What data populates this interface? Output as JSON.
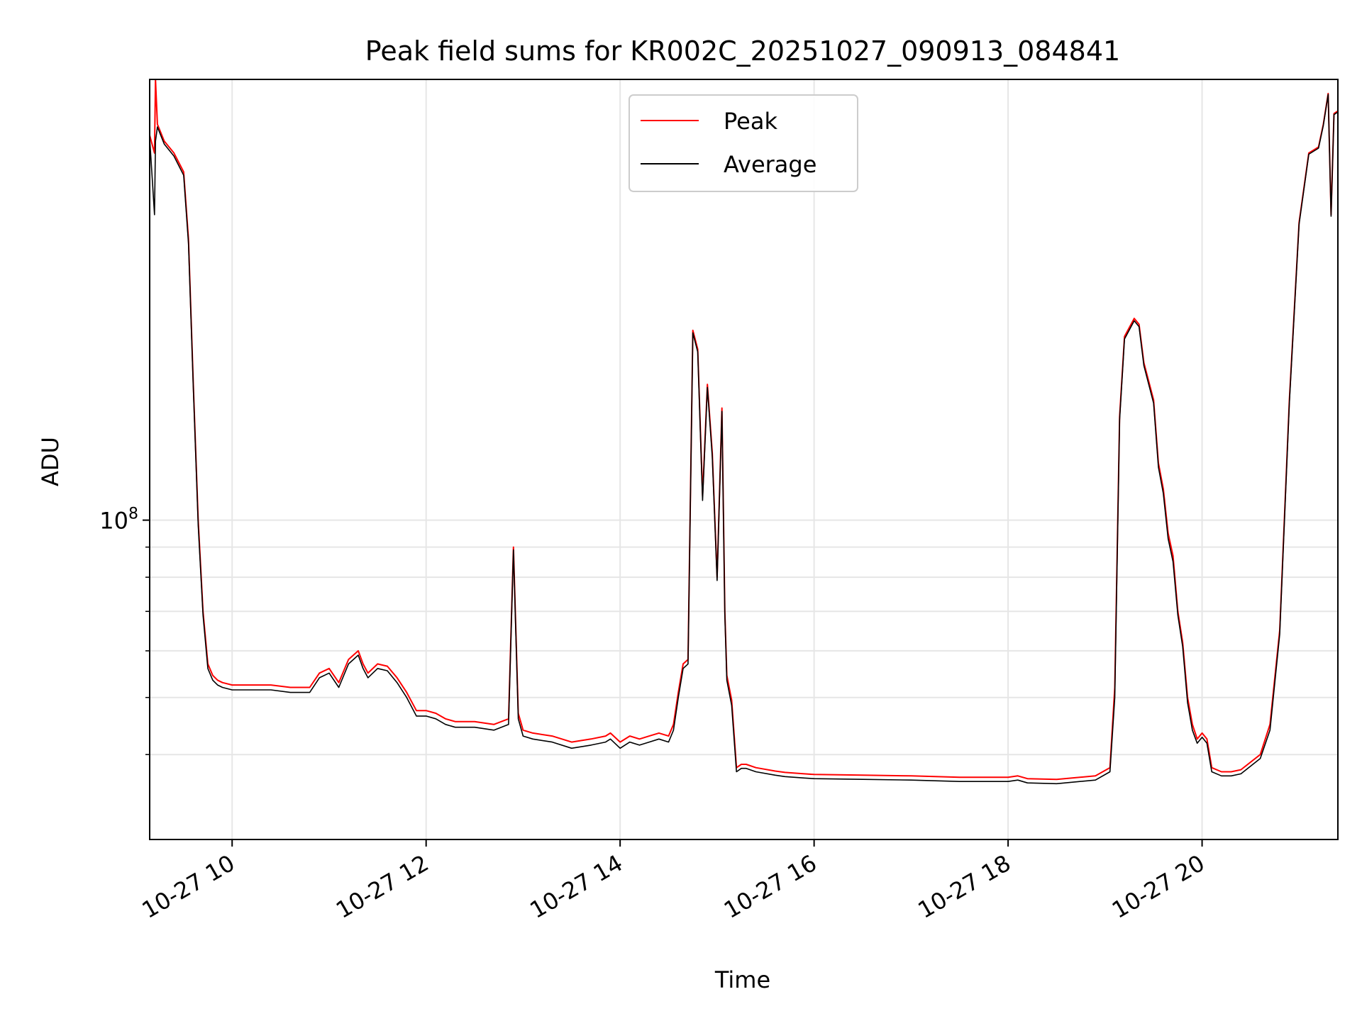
{
  "chart_data": {
    "type": "line",
    "title": "Peak field sums for KR002C_20251027_090913_084841",
    "xlabel": "Time",
    "ylabel": "ADU",
    "x_unit": "hours (local time)",
    "xlim": [
      9.15,
      21.4
    ],
    "ylim": [
      28700000,
      560000000
    ],
    "yscale": "log",
    "grid": true,
    "legend_position": "top-center",
    "x_ticks": [
      {
        "value": 10,
        "label": "10-27 10"
      },
      {
        "value": 12,
        "label": "10-27 12"
      },
      {
        "value": 14,
        "label": "10-27 14"
      },
      {
        "value": 16,
        "label": "10-27 16"
      },
      {
        "value": 18,
        "label": "10-27 18"
      },
      {
        "value": 20,
        "label": "10-27 20"
      }
    ],
    "y_major_ticks": [
      {
        "value": 100000000,
        "base": "10",
        "exp": "8"
      }
    ],
    "y_minor_ticks": [
      40000000,
      50000000,
      60000000,
      70000000,
      80000000,
      90000000
    ],
    "series": [
      {
        "name": "Peak",
        "color": "#ff0000",
        "x": [
          9.15,
          9.2,
          9.21,
          9.23,
          9.3,
          9.4,
          9.5,
          9.55,
          9.6,
          9.65,
          9.7,
          9.75,
          9.8,
          9.85,
          9.9,
          10.0,
          10.2,
          10.4,
          10.6,
          10.8,
          10.9,
          11.0,
          11.1,
          11.2,
          11.3,
          11.35,
          11.4,
          11.5,
          11.6,
          11.7,
          11.8,
          11.9,
          12.0,
          12.1,
          12.2,
          12.3,
          12.5,
          12.7,
          12.85,
          12.9,
          12.95,
          13.0,
          13.1,
          13.3,
          13.5,
          13.7,
          13.85,
          13.9,
          14.0,
          14.1,
          14.2,
          14.3,
          14.4,
          14.5,
          14.55,
          14.6,
          14.65,
          14.7,
          14.75,
          14.8,
          14.85,
          14.9,
          14.95,
          15.0,
          15.05,
          15.08,
          15.1,
          15.15,
          15.2,
          15.25,
          15.3,
          15.4,
          15.6,
          15.7,
          15.8,
          15.9,
          16.0,
          16.5,
          17.0,
          17.5,
          18.0,
          18.1,
          18.2,
          18.5,
          18.9,
          19.05,
          19.1,
          19.15,
          19.2,
          19.3,
          19.35,
          19.4,
          19.5,
          19.55,
          19.6,
          19.65,
          19.7,
          19.75,
          19.8,
          19.85,
          19.9,
          19.95,
          20.0,
          20.05,
          20.1,
          20.2,
          20.3,
          20.4,
          20.6,
          20.7,
          20.8,
          20.9,
          21.0,
          21.1,
          21.2,
          21.25,
          21.3,
          21.33,
          21.36,
          21.4
        ],
        "values": [
          450000000,
          420000000,
          560000000,
          470000000,
          440000000,
          420000000,
          390000000,
          300000000,
          170000000,
          100000000,
          70000000,
          57000000,
          54500000,
          53500000,
          53000000,
          52500000,
          52500000,
          52500000,
          52000000,
          52000000,
          55000000,
          56000000,
          53000000,
          58000000,
          60000000,
          57000000,
          55000000,
          57000000,
          56500000,
          54000000,
          51000000,
          47500000,
          47500000,
          47000000,
          46000000,
          45500000,
          45500000,
          45000000,
          46000000,
          90000000,
          47000000,
          44000000,
          43500000,
          43000000,
          42000000,
          42500000,
          43000000,
          43500000,
          42000000,
          43000000,
          42500000,
          43000000,
          43500000,
          43000000,
          45000000,
          51000000,
          57000000,
          58000000,
          210000000,
          195000000,
          110000000,
          170000000,
          130000000,
          80000000,
          155000000,
          70000000,
          54500000,
          49500000,
          38000000,
          38500000,
          38500000,
          38000000,
          37500000,
          37300000,
          37200000,
          37100000,
          37000000,
          36900000,
          36800000,
          36600000,
          36600000,
          36800000,
          36400000,
          36300000,
          36800000,
          38000000,
          52000000,
          150000000,
          205000000,
          220000000,
          215000000,
          185000000,
          160000000,
          125000000,
          113000000,
          95000000,
          87000000,
          70000000,
          62000000,
          50000000,
          45000000,
          42500000,
          43500000,
          42500000,
          38000000,
          37400000,
          37400000,
          37700000,
          40000000,
          45000000,
          65000000,
          160000000,
          320000000,
          420000000,
          430000000,
          470000000,
          530000000,
          330000000,
          490000000,
          495000000
        ]
      },
      {
        "name": "Average",
        "color": "#000000",
        "x": [
          9.15,
          9.2,
          9.21,
          9.23,
          9.3,
          9.4,
          9.5,
          9.55,
          9.6,
          9.65,
          9.7,
          9.75,
          9.8,
          9.85,
          9.9,
          10.0,
          10.2,
          10.4,
          10.6,
          10.8,
          10.9,
          11.0,
          11.1,
          11.2,
          11.3,
          11.35,
          11.4,
          11.5,
          11.6,
          11.7,
          11.8,
          11.9,
          12.0,
          12.1,
          12.2,
          12.3,
          12.5,
          12.7,
          12.85,
          12.9,
          12.95,
          13.0,
          13.1,
          13.3,
          13.5,
          13.7,
          13.85,
          13.9,
          14.0,
          14.1,
          14.2,
          14.3,
          14.4,
          14.5,
          14.55,
          14.6,
          14.65,
          14.7,
          14.75,
          14.8,
          14.85,
          14.9,
          14.95,
          15.0,
          15.05,
          15.08,
          15.1,
          15.15,
          15.2,
          15.25,
          15.3,
          15.4,
          15.6,
          15.7,
          15.8,
          15.9,
          16.0,
          16.5,
          17.0,
          17.5,
          18.0,
          18.1,
          18.2,
          18.5,
          18.9,
          19.05,
          19.1,
          19.15,
          19.2,
          19.3,
          19.35,
          19.4,
          19.5,
          19.55,
          19.6,
          19.65,
          19.7,
          19.75,
          19.8,
          19.85,
          19.9,
          19.95,
          20.0,
          20.05,
          20.1,
          20.2,
          20.3,
          20.4,
          20.6,
          20.7,
          20.8,
          20.9,
          21.0,
          21.1,
          21.2,
          21.25,
          21.3,
          21.33,
          21.36,
          21.4
        ],
        "values": [
          445000000,
          330000000,
          440000000,
          465000000,
          435000000,
          415000000,
          385000000,
          295000000,
          168000000,
          98000000,
          69000000,
          56000000,
          53500000,
          52500000,
          52000000,
          51500000,
          51500000,
          51500000,
          51000000,
          51000000,
          54000000,
          55000000,
          52000000,
          57000000,
          59000000,
          56000000,
          54000000,
          56000000,
          55500000,
          53000000,
          50000000,
          46500000,
          46500000,
          46000000,
          45000000,
          44500000,
          44500000,
          44000000,
          45000000,
          89000000,
          46000000,
          43000000,
          42500000,
          42000000,
          41000000,
          41500000,
          42000000,
          42500000,
          41000000,
          42000000,
          41500000,
          42000000,
          42500000,
          42000000,
          44000000,
          50000000,
          56000000,
          57000000,
          208000000,
          193000000,
          108000000,
          168000000,
          128000000,
          79000000,
          153000000,
          69000000,
          53500000,
          48500000,
          37400000,
          37900000,
          37900000,
          37400000,
          36900000,
          36700000,
          36600000,
          36500000,
          36400000,
          36300000,
          36200000,
          36000000,
          36000000,
          36200000,
          35800000,
          35700000,
          36200000,
          37400000,
          50000000,
          148000000,
          203000000,
          218000000,
          213000000,
          183000000,
          158000000,
          123000000,
          111000000,
          93000000,
          85000000,
          69000000,
          61000000,
          49000000,
          44000000,
          41800000,
          42800000,
          41800000,
          37400000,
          36800000,
          36800000,
          37100000,
          39400000,
          44000000,
          64000000,
          158000000,
          318000000,
          418000000,
          428000000,
          468000000,
          528000000,
          328000000,
          488000000,
          493000000
        ]
      }
    ]
  }
}
